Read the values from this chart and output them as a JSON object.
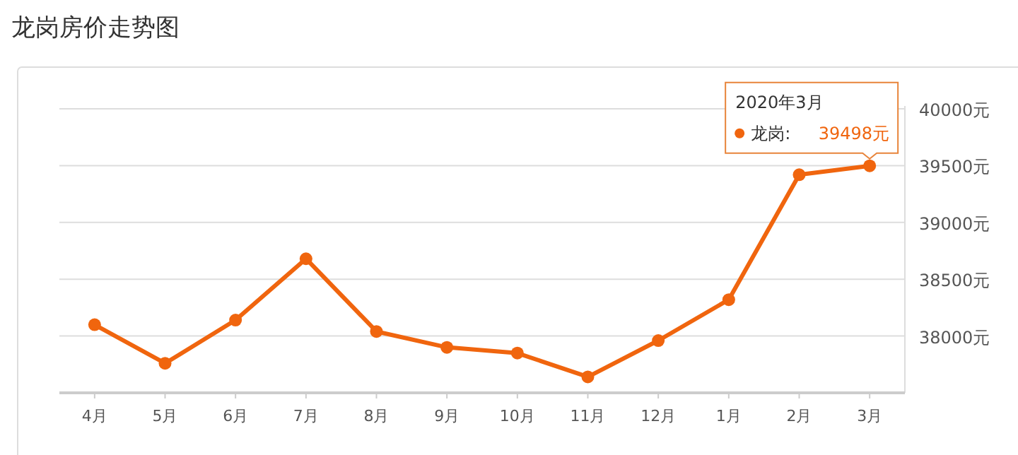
{
  "chart_data": {
    "type": "line",
    "title": "龙岗房价走势图",
    "categories": [
      "4月",
      "5月",
      "6月",
      "7月",
      "8月",
      "9月",
      "10月",
      "11月",
      "12月",
      "1月",
      "2月",
      "3月"
    ],
    "series": [
      {
        "name": "龙岗:",
        "color": "#f0650e",
        "values": [
          38100,
          37760,
          38140,
          38680,
          38040,
          37900,
          37850,
          37640,
          37960,
          38320,
          39420,
          39498
        ],
        "value_labels": [
          null,
          null,
          null,
          null,
          null,
          null,
          null,
          null,
          null,
          null,
          null,
          "39498元"
        ]
      }
    ],
    "ylim": [
      37500,
      40000
    ],
    "yticks": [
      {
        "value": 38000,
        "label": "38000元"
      },
      {
        "value": 38500,
        "label": "38500元"
      },
      {
        "value": 39000,
        "label": "39000元"
      },
      {
        "value": 39500,
        "label": "39500元"
      },
      {
        "value": 40000,
        "label": "40000元"
      }
    ],
    "grid": "y",
    "marker": "circle",
    "annotations": [
      "2020年3月"
    ]
  }
}
